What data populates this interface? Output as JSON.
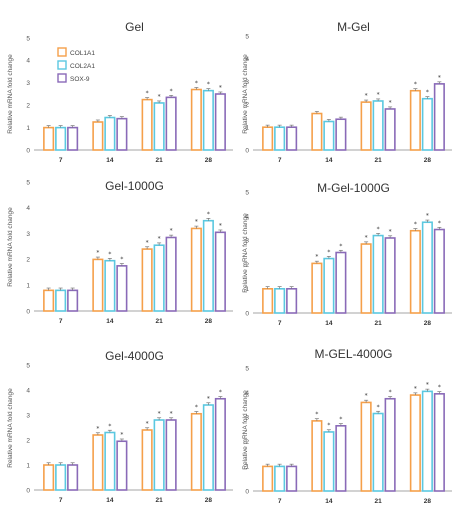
{
  "ylabel": "Relative mRNA fold change",
  "legend": [
    "COL1A1",
    "COL2A1",
    "SOX-9"
  ],
  "colors": {
    "COL1A1": "#f5a04a",
    "COL2A1": "#5bc8e0",
    "SOX-9": "#8a6ab8"
  },
  "chart_data": [
    {
      "type": "bar",
      "title": "Gel",
      "categories": [
        "7",
        "14",
        "21",
        "28"
      ],
      "ylim": [
        0,
        5
      ],
      "yticks": [
        0,
        1,
        2,
        3,
        4,
        5
      ],
      "series": [
        {
          "name": "COL1A1",
          "values": [
            1.0,
            1.25,
            2.25,
            2.7
          ]
        },
        {
          "name": "COL2A1",
          "values": [
            1.0,
            1.45,
            2.1,
            2.65
          ]
        },
        {
          "name": "SOX-9",
          "values": [
            1.0,
            1.4,
            2.35,
            2.5
          ]
        }
      ],
      "stars": [
        [
          false,
          false,
          false
        ],
        [
          false,
          false,
          false
        ],
        [
          true,
          true,
          true
        ],
        [
          true,
          true,
          true
        ]
      ]
    },
    {
      "type": "bar",
      "title": "M-Gel",
      "categories": [
        "7",
        "14",
        "21",
        "28"
      ],
      "ylim": [
        0,
        5
      ],
      "yticks": [
        0,
        1,
        2,
        3,
        4,
        5
      ],
      "series": [
        {
          "name": "COL1A1",
          "values": [
            1.0,
            1.6,
            2.1,
            2.6
          ]
        },
        {
          "name": "COL2A1",
          "values": [
            1.0,
            1.25,
            2.15,
            2.25
          ]
        },
        {
          "name": "SOX-9",
          "values": [
            1.0,
            1.35,
            1.8,
            2.9
          ]
        }
      ],
      "stars": [
        [
          false,
          false,
          false
        ],
        [
          false,
          false,
          false
        ],
        [
          true,
          true,
          true
        ],
        [
          true,
          true,
          true
        ]
      ]
    },
    {
      "type": "bar",
      "title": "Gel-1000G",
      "categories": [
        "7",
        "14",
        "21",
        "28"
      ],
      "ylim": [
        0,
        5
      ],
      "yticks": [
        0,
        1,
        2,
        3,
        4,
        5
      ],
      "series": [
        {
          "name": "COL1A1",
          "values": [
            0.8,
            2.0,
            2.4,
            3.2
          ]
        },
        {
          "name": "COL2A1",
          "values": [
            0.8,
            1.95,
            2.55,
            3.5
          ]
        },
        {
          "name": "SOX-9",
          "values": [
            0.8,
            1.75,
            2.85,
            3.05
          ]
        }
      ],
      "stars": [
        [
          false,
          false,
          false
        ],
        [
          true,
          true,
          true
        ],
        [
          true,
          true,
          true
        ],
        [
          true,
          true,
          true
        ]
      ]
    },
    {
      "type": "bar",
      "title": "M-Gel-1000G",
      "categories": [
        "7",
        "14",
        "21",
        "28"
      ],
      "ylim": [
        0,
        5
      ],
      "yticks": [
        0,
        1,
        2,
        3,
        4,
        5
      ],
      "series": [
        {
          "name": "COL1A1",
          "values": [
            1.0,
            2.05,
            2.85,
            3.4
          ]
        },
        {
          "name": "COL2A1",
          "values": [
            1.0,
            2.25,
            3.2,
            3.75
          ]
        },
        {
          "name": "SOX-9",
          "values": [
            1.0,
            2.5,
            3.1,
            3.45
          ]
        }
      ],
      "stars": [
        [
          false,
          false,
          false
        ],
        [
          true,
          true,
          true
        ],
        [
          true,
          true,
          true
        ],
        [
          true,
          true,
          true
        ]
      ]
    },
    {
      "type": "bar",
      "title": "Gel-4000G",
      "categories": [
        "7",
        "14",
        "21",
        "28"
      ],
      "ylim": [
        0,
        5
      ],
      "yticks": [
        0,
        1,
        2,
        3,
        4,
        5
      ],
      "series": [
        {
          "name": "COL1A1",
          "values": [
            1.0,
            2.2,
            2.4,
            3.05
          ]
        },
        {
          "name": "COL2A1",
          "values": [
            1.0,
            2.3,
            2.8,
            3.4
          ]
        },
        {
          "name": "SOX-9",
          "values": [
            1.0,
            1.95,
            2.8,
            3.65
          ]
        }
      ],
      "stars": [
        [
          false,
          false,
          false
        ],
        [
          true,
          true,
          true
        ],
        [
          true,
          true,
          true
        ],
        [
          true,
          true,
          true
        ]
      ]
    },
    {
      "type": "bar",
      "title": "M-GEL-4000G",
      "categories": [
        "7",
        "14",
        "21",
        "28"
      ],
      "ylim": [
        0,
        5
      ],
      "yticks": [
        0,
        1,
        2,
        3,
        4,
        5
      ],
      "series": [
        {
          "name": "COL1A1",
          "values": [
            1.0,
            2.85,
            3.6,
            3.9
          ]
        },
        {
          "name": "COL2A1",
          "values": [
            1.0,
            2.4,
            3.15,
            4.05
          ]
        },
        {
          "name": "SOX-9",
          "values": [
            1.0,
            2.65,
            3.75,
            3.95
          ]
        }
      ],
      "stars": [
        [
          false,
          false,
          false
        ],
        [
          true,
          true,
          true
        ],
        [
          true,
          true,
          true
        ],
        [
          true,
          true,
          true
        ]
      ]
    }
  ]
}
